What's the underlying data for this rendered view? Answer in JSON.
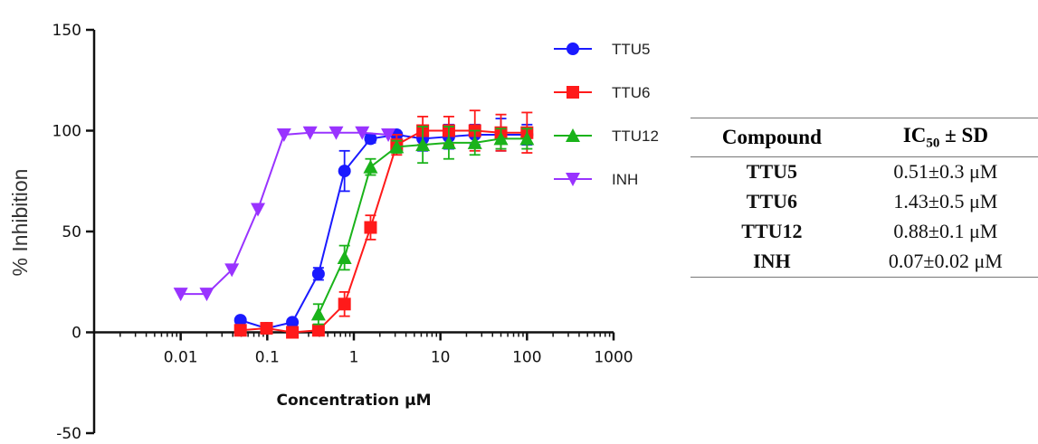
{
  "chart_data": {
    "type": "scatter",
    "title": "",
    "xlabel": "Concentration µM",
    "ylabel": "% Inhibition",
    "xscale": "log",
    "xlim": [
      0.001,
      1000
    ],
    "ylim": [
      -50,
      150
    ],
    "x_ticks": [
      0.01,
      0.1,
      1,
      10,
      100,
      1000
    ],
    "x_tick_labels": [
      "0.01",
      "0.1",
      "1",
      "10",
      "100",
      "1000"
    ],
    "y_ticks": [
      -50,
      0,
      50,
      100,
      150
    ],
    "y_tick_labels": [
      "-50",
      "0",
      "50",
      "100",
      "150"
    ],
    "grid": false,
    "legend_position": "top-right",
    "series": [
      {
        "name": "TTU5",
        "color": "#1a1aff",
        "marker": "circle",
        "x": [
          0.049,
          0.098,
          0.195,
          0.39,
          0.78,
          1.56,
          3.125,
          6.25,
          12.5,
          25,
          50,
          100
        ],
        "y": [
          6,
          2,
          5,
          29,
          80,
          96,
          98,
          96,
          97,
          98,
          98,
          98
        ],
        "err": [
          1,
          1,
          1,
          3,
          10,
          2,
          1,
          6,
          6,
          5,
          8,
          5
        ]
      },
      {
        "name": "TTU6",
        "color": "#ff1a1a",
        "marker": "square",
        "x": [
          0.049,
          0.098,
          0.195,
          0.39,
          0.78,
          1.56,
          3.125,
          6.25,
          12.5,
          25,
          50,
          100
        ],
        "y": [
          1,
          2,
          0,
          1,
          14,
          52,
          93,
          100,
          100,
          100,
          99,
          99
        ],
        "err": [
          1,
          1,
          1,
          1,
          6,
          6,
          5,
          7,
          7,
          10,
          9,
          10
        ]
      },
      {
        "name": "TTU12",
        "color": "#1ab31a",
        "marker": "triangle-up",
        "x": [
          0.39,
          0.78,
          1.56,
          3.125,
          6.25,
          12.5,
          25,
          50,
          100
        ],
        "y": [
          9,
          37,
          82,
          92,
          93,
          94,
          94,
          96,
          96
        ],
        "err": [
          5,
          6,
          4,
          3,
          9,
          8,
          6,
          5,
          5
        ]
      },
      {
        "name": "INH",
        "color": "#9933ff",
        "marker": "triangle-down",
        "x": [
          0.01,
          0.02,
          0.039,
          0.078,
          0.156,
          0.3125,
          0.625,
          1.25,
          2.5
        ],
        "y": [
          19,
          19,
          31,
          61,
          98,
          99,
          99,
          99,
          98
        ],
        "err": [
          0,
          0,
          0,
          0,
          0,
          0,
          0,
          0,
          0
        ]
      }
    ]
  },
  "ic50_table": {
    "header": {
      "compound": "Compound",
      "ic50_prefix": "IC",
      "ic50_sub": "50",
      "ic50_suffix": " ± SD"
    },
    "rows": [
      {
        "compound": "TTU5",
        "value": "0.51±0.3 μM"
      },
      {
        "compound": "TTU6",
        "value": "1.43±0.5 μM"
      },
      {
        "compound": "TTU12",
        "value": "0.88±0.1 μM"
      },
      {
        "compound": "INH",
        "value": "0.07±0.02 μM"
      }
    ]
  }
}
